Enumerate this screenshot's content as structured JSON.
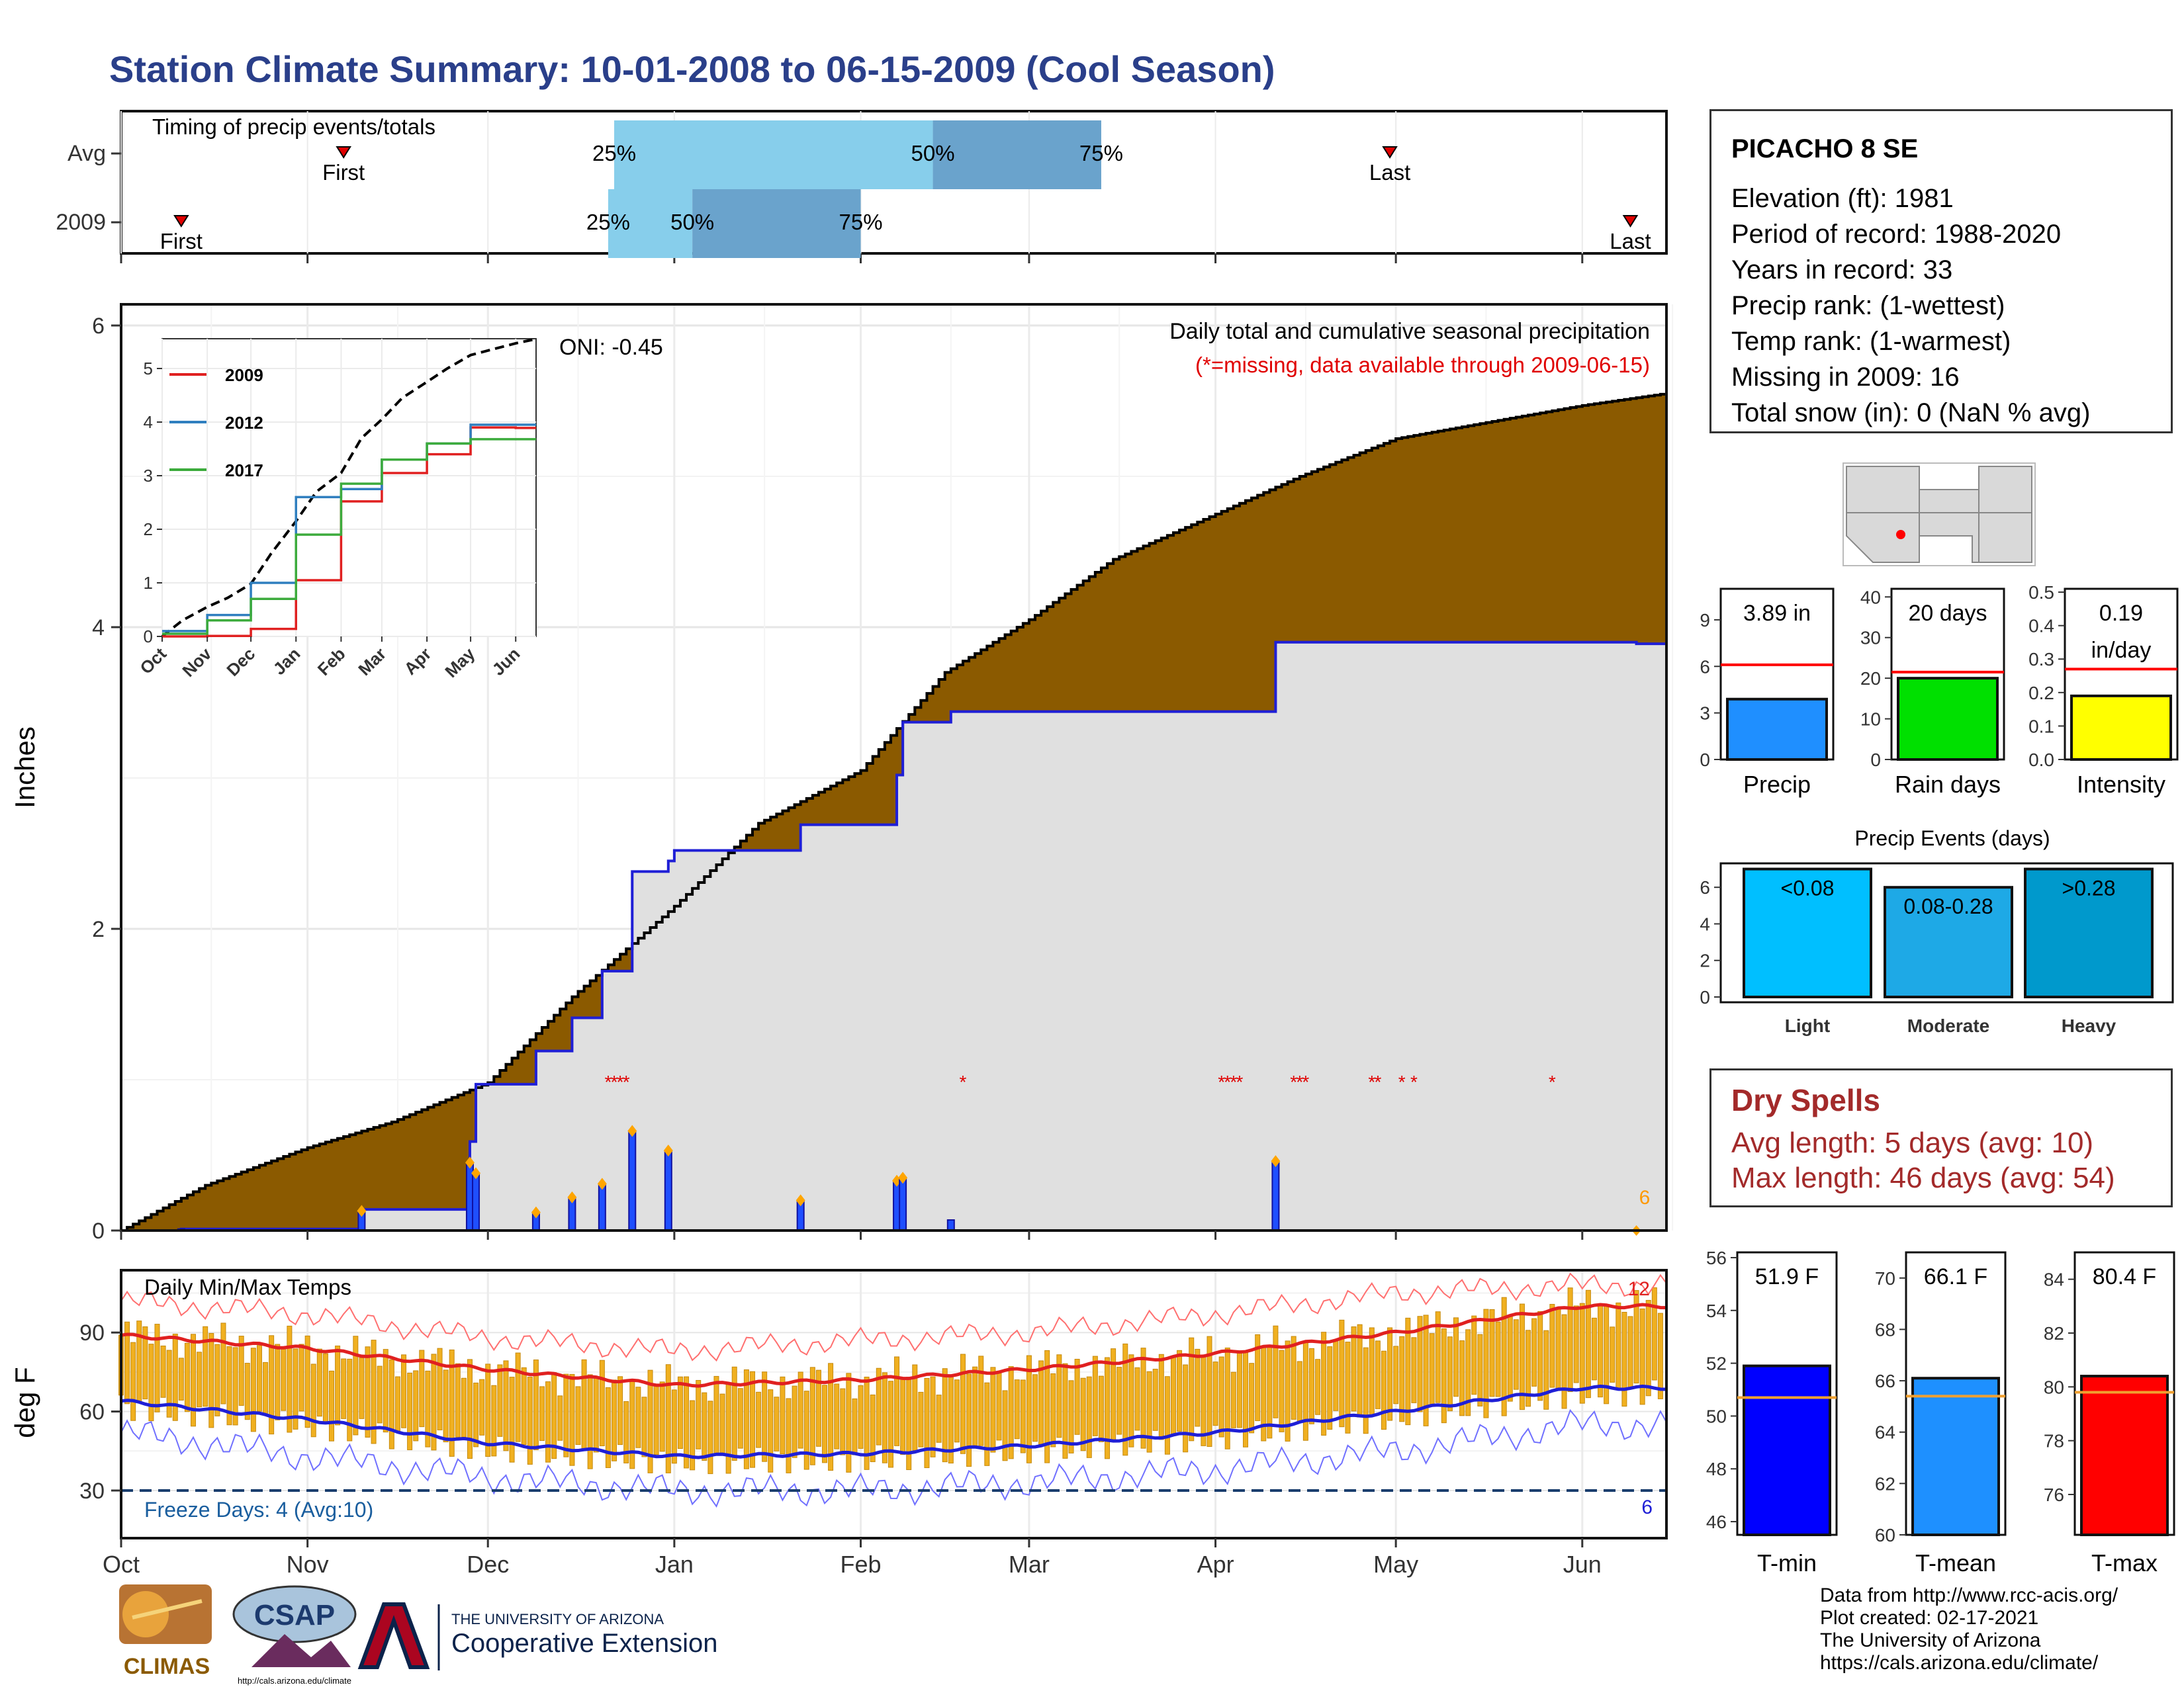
{
  "title": "Station Climate Summary: 10-01-2008 to 06-15-2009 (Cool Season)",
  "colors": {
    "title": "#2a3f8a",
    "cumulative_fill": "#8b5a00",
    "avg_fill": "#e0e0e0",
    "avg_line": "#1f1fd6",
    "tmax": "#e02020",
    "tmin": "#1f1fd6",
    "bars": "#f0b020",
    "precip_bar": "#1f8fff",
    "raindays_bar": "#00e000",
    "intensity_bar": "#ffff00",
    "light": "#00bfff",
    "moderate": "#1ea9e6",
    "heavy": "#0099cc",
    "tmin_bar": "#0000ff",
    "tmean_bar": "#1e90ff",
    "tmax_bar": "#ff0000",
    "timing_light": "#87ceeb",
    "timing_dark": "#6aa3cc"
  },
  "timing": {
    "panel_title": "Timing of precip events/totals",
    "rows": [
      {
        "label": "Avg",
        "first": "First",
        "last": "Last",
        "p25": "25%",
        "p50": "50%",
        "p75": "75%"
      },
      {
        "label": "2009",
        "first": "First",
        "last": "Last",
        "p25": "25%",
        "p50": "50%",
        "p75": "75%"
      }
    ]
  },
  "precip_panel": {
    "ylabel": "Inches",
    "yticks": [
      "0",
      "2",
      "4",
      "6"
    ],
    "annotation": "Daily total and cumulative seasonal precipitation",
    "missing_note": "(*=missing, data available through 2009-06-15)",
    "oni": "ONI: -0.45",
    "count_label": "6"
  },
  "inset": {
    "yticks": [
      "0",
      "1",
      "2",
      "3",
      "4",
      "5"
    ],
    "xticks": [
      "Oct",
      "Nov",
      "Dec",
      "Jan",
      "Feb",
      "Mar",
      "Apr",
      "May",
      "Jun"
    ],
    "legend": [
      "2009",
      "2012",
      "2017"
    ]
  },
  "temp_panel": {
    "ylabel": "deg F",
    "title": "Daily Min/Max Temps",
    "yticks": [
      "30",
      "60",
      "90"
    ],
    "freeze": "Freeze Days: 4 (Avg:10)",
    "max_count": "12",
    "min_count": "6"
  },
  "months": [
    "Oct",
    "Nov",
    "Dec",
    "Jan",
    "Feb",
    "Mar",
    "Apr",
    "May",
    "Jun"
  ],
  "station": {
    "name": "PICACHO 8 SE",
    "lines": [
      "Elevation (ft): 1981",
      "Period of record: 1988-2020",
      "Years in record: 33",
      "Precip rank:  (1-wettest)",
      "Temp rank:  (1-warmest)",
      "Missing in 2009: 16",
      "Total snow (in): 0 (NaN % avg)"
    ]
  },
  "summary_bars": {
    "precip": {
      "label": "Precip",
      "value_text": "3.89 in",
      "yticks": [
        "0",
        "3",
        "6",
        "9"
      ]
    },
    "rain_days": {
      "label": "Rain days",
      "value_text": "20 days",
      "yticks": [
        "0",
        "10",
        "20",
        "30",
        "40"
      ]
    },
    "intensity": {
      "label": "Intensity",
      "value_text1": "0.19",
      "value_text2": "in/day",
      "yticks": [
        "0.0",
        "0.1",
        "0.2",
        "0.3",
        "0.4",
        "0.5"
      ]
    }
  },
  "events": {
    "title": "Precip Events (days)",
    "yticks": [
      "0",
      "2",
      "4",
      "6"
    ],
    "bars": [
      {
        "label": "Light",
        "value_text": "<0.08"
      },
      {
        "label": "Moderate",
        "value_text": "0.08-0.28"
      },
      {
        "label": "Heavy",
        "value_text": ">0.28"
      }
    ]
  },
  "dry_spells": {
    "title": "Dry Spells",
    "avg": "Avg length: 5 days (avg: 10)",
    "max": "Max length: 46 days (avg: 54)"
  },
  "temp_bars": {
    "tmin": {
      "label": "T-min",
      "value_text": "51.9 F",
      "yticks": [
        "46",
        "48",
        "50",
        "52",
        "54",
        "56"
      ]
    },
    "tmean": {
      "label": "T-mean",
      "value_text": "66.1 F",
      "yticks": [
        "60",
        "62",
        "64",
        "66",
        "68",
        "70"
      ]
    },
    "tmax": {
      "label": "T-max",
      "value_text": "80.4 F",
      "yticks": [
        "76",
        "78",
        "80",
        "82",
        "84"
      ]
    }
  },
  "footer": {
    "lines": [
      "Data from http://www.rcc-acis.org/",
      "Plot created: 02-17-2021",
      "The University of Arizona",
      "https://cals.arizona.edu/climate/"
    ],
    "climas": "CLIMAS",
    "csap": "CSAP",
    "csap_url": "http://cals.arizona.edu/climate",
    "ua_small": "THE UNIVERSITY OF ARIZONA",
    "ua_big": "Cooperative Extension"
  },
  "chart_data": [
    {
      "type": "bar",
      "title": "Timing of precip events/totals",
      "categories": [
        "Avg",
        "2009"
      ],
      "series": [
        {
          "name": "First",
          "values": [
            "2008-11-07",
            "2008-10-11"
          ]
        },
        {
          "name": "25%",
          "values": [
            "2008-12-22",
            "2008-12-21"
          ]
        },
        {
          "name": "50%",
          "values": [
            "2009-02-13",
            "2009-01-04"
          ]
        },
        {
          "name": "75%",
          "values": [
            "2009-03-13",
            "2009-02-01"
          ]
        },
        {
          "name": "Last",
          "values": [
            "2009-04-30",
            "2009-06-09"
          ]
        }
      ]
    },
    {
      "type": "area",
      "title": "Daily total and cumulative seasonal precipitation",
      "ylabel": "Inches",
      "ylim": [
        0,
        6
      ],
      "series": [
        {
          "name": "cumulative average",
          "x": [
            "2008-10-01",
            "2008-10-15",
            "2008-11-01",
            "2008-11-15",
            "2008-12-01",
            "2008-12-15",
            "2009-01-01",
            "2009-01-15",
            "2009-02-01",
            "2009-02-15",
            "2009-03-01",
            "2009-03-15",
            "2009-04-01",
            "2009-04-15",
            "2009-05-01",
            "2009-05-15",
            "2009-06-01",
            "2009-06-15"
          ],
          "values": [
            0.0,
            0.3,
            0.55,
            0.72,
            0.98,
            1.55,
            2.15,
            2.7,
            3.05,
            3.7,
            4.05,
            4.45,
            4.75,
            5.0,
            5.25,
            5.35,
            5.47,
            5.55
          ]
        },
        {
          "name": "cumulative 2009",
          "x": [
            "2008-10-01",
            "2008-10-11",
            "2008-11-10",
            "2008-11-28",
            "2008-11-29",
            "2008-12-09",
            "2008-12-15",
            "2008-12-20",
            "2008-12-25",
            "2008-12-31",
            "2009-01-01",
            "2009-01-22",
            "2009-02-07",
            "2009-02-08",
            "2009-02-16",
            "2009-04-11",
            "2009-05-01",
            "2009-06-10",
            "2009-06-15"
          ],
          "values": [
            0.0,
            0.01,
            0.14,
            0.59,
            0.97,
            1.19,
            1.41,
            1.72,
            2.38,
            2.45,
            2.52,
            2.69,
            3.02,
            3.37,
            3.44,
            3.9,
            3.9,
            3.89,
            3.89
          ]
        },
        {
          "name": "daily 2009",
          "x": [
            "2008-10-11",
            "2008-11-10",
            "2008-11-28",
            "2008-11-29",
            "2008-12-09",
            "2008-12-15",
            "2008-12-20",
            "2008-12-25",
            "2008-12-31",
            "2009-01-22",
            "2009-02-07",
            "2009-02-08",
            "2009-02-16",
            "2009-04-11"
          ],
          "values": [
            0.01,
            0.13,
            0.45,
            0.38,
            0.12,
            0.22,
            0.31,
            0.66,
            0.53,
            0.2,
            0.33,
            0.35,
            0.07,
            0.46
          ]
        }
      ]
    },
    {
      "type": "line",
      "title": "",
      "xlabel": "",
      "ylabel": "",
      "categories": [
        "Oct",
        "Nov",
        "Dec",
        "Jan",
        "Feb",
        "Mar",
        "Apr",
        "May",
        "Jun"
      ],
      "ylim": [
        0,
        5.5
      ],
      "series": [
        {
          "name": "2009",
          "values": [
            0.0,
            0.01,
            0.14,
            1.05,
            2.52,
            3.05,
            3.4,
            3.9,
            3.89
          ]
        },
        {
          "name": "2012",
          "values": [
            0.1,
            0.4,
            1.0,
            2.6,
            2.75,
            3.3,
            3.6,
            3.95,
            3.95
          ]
        },
        {
          "name": "2017",
          "values": [
            0.05,
            0.3,
            0.7,
            1.9,
            2.85,
            3.3,
            3.6,
            3.68,
            3.68
          ]
        }
      ]
    },
    {
      "type": "line",
      "title": "Daily Min/Max Temps",
      "ylabel": "deg F",
      "categories": [
        "Oct",
        "Nov",
        "Dec",
        "Jan",
        "Feb",
        "Mar",
        "Apr",
        "May",
        "Jun"
      ],
      "series": [
        {
          "name": "avg max",
          "values": [
            89,
            84,
            76,
            70,
            72,
            76,
            82,
            90,
            100
          ]
        },
        {
          "name": "avg min",
          "values": [
            64,
            57,
            48,
            43,
            44,
            47,
            52,
            60,
            69
          ]
        },
        {
          "name": "record high",
          "values": [
            102,
            97,
            88,
            83,
            87,
            90,
            97,
            105,
            108
          ]
        },
        {
          "name": "record low",
          "values": [
            52,
            43,
            35,
            30,
            30,
            33,
            38,
            45,
            55
          ]
        }
      ]
    },
    {
      "type": "bar",
      "title": "",
      "categories": [
        "Precip"
      ],
      "values": [
        3.89
      ],
      "ylim": [
        0,
        11
      ],
      "avg": 6.1
    },
    {
      "type": "bar",
      "title": "",
      "categories": [
        "Rain days"
      ],
      "values": [
        20
      ],
      "ylim": [
        0,
        42
      ],
      "avg": 21.5
    },
    {
      "type": "bar",
      "title": "",
      "categories": [
        "Intensity"
      ],
      "values": [
        0.19
      ],
      "ylim": [
        0,
        0.51
      ],
      "avg": 0.27
    },
    {
      "type": "bar",
      "title": "Precip Events (days)",
      "categories": [
        "Light",
        "Moderate",
        "Heavy"
      ],
      "values": [
        7,
        6,
        7
      ],
      "ylim": [
        0,
        7
      ]
    },
    {
      "type": "bar",
      "title": "",
      "categories": [
        "T-min"
      ],
      "values": [
        51.9
      ],
      "ylim": [
        45.5,
        56.2
      ],
      "avg": 50.7
    },
    {
      "type": "bar",
      "title": "",
      "categories": [
        "T-mean"
      ],
      "values": [
        66.1
      ],
      "ylim": [
        60,
        71
      ],
      "avg": 65.4
    },
    {
      "type": "bar",
      "title": "",
      "categories": [
        "T-max"
      ],
      "values": [
        80.4
      ],
      "ylim": [
        74.5,
        85
      ],
      "avg": 79.8
    }
  ]
}
